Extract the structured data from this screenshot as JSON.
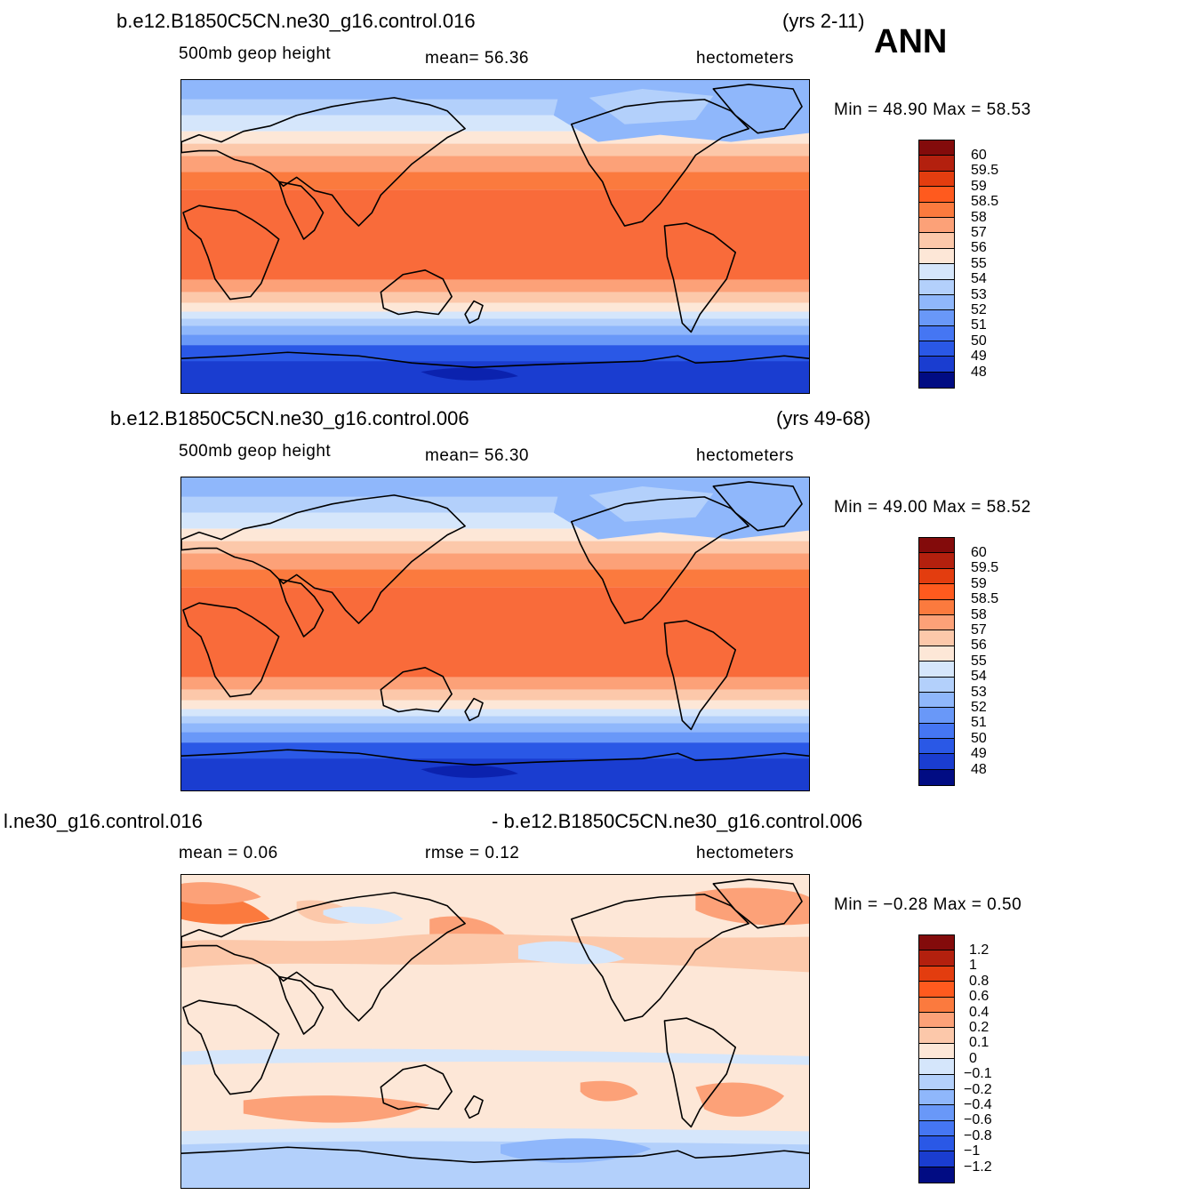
{
  "header": {
    "season": "ANN"
  },
  "palette": {
    "reds": [
      "#830b0b",
      "#b3200e",
      "#e33d0f",
      "#ff5a1e",
      "#fb7a3e",
      "#fca178",
      "#fcc8aa",
      "#fde7d7"
    ],
    "blues": [
      "#d5e6fb",
      "#b3d0fb",
      "#8fb7fb",
      "#6998f8",
      "#4576f3",
      "#2a58e6",
      "#1a3dd0",
      "#0b22ae",
      "#010c83"
    ],
    "coast": "#000000"
  },
  "panels": [
    {
      "case": "b.e12.B1850C5CN.ne30_g16.control.016",
      "years": "(yrs 2-11)",
      "variable": "500mb  geop  height",
      "stat": "mean=   56.36",
      "units": "hectometers",
      "minmax": "Min =    48.90  Max =    58.53",
      "levels": [
        "60",
        "59.5",
        "59",
        "58.5",
        "58",
        "57",
        "56",
        "55",
        "54",
        "53",
        "52",
        "51",
        "50",
        "49",
        "48"
      ]
    },
    {
      "case": "b.e12.B1850C5CN.ne30_g16.control.006",
      "years": "(yrs 49-68)",
      "variable": "500mb  geop  height",
      "stat": "mean=   56.30",
      "units": "hectometers",
      "minmax": "Min =    49.00  Max =    58.52",
      "levels": [
        "60",
        "59.5",
        "59",
        "58.5",
        "58",
        "57",
        "56",
        "55",
        "54",
        "53",
        "52",
        "51",
        "50",
        "49",
        "48"
      ]
    },
    {
      "case_left": "l.ne30_g16.control.016",
      "case_right": "- b.e12.B1850C5CN.ne30_g16.control.006",
      "stat": "mean =     0.06",
      "rmse": "rmse =     0.12",
      "units": "hectometers",
      "minmax": "Min =   −0.28  Max =      0.50",
      "levels": [
        "1.2",
        "1",
        "0.8",
        "0.6",
        "0.4",
        "0.2",
        "0.1",
        "0",
        "−0.1",
        "−0.2",
        "−0.4",
        "−0.6",
        "−0.8",
        "−1",
        "−1.2"
      ]
    }
  ]
}
